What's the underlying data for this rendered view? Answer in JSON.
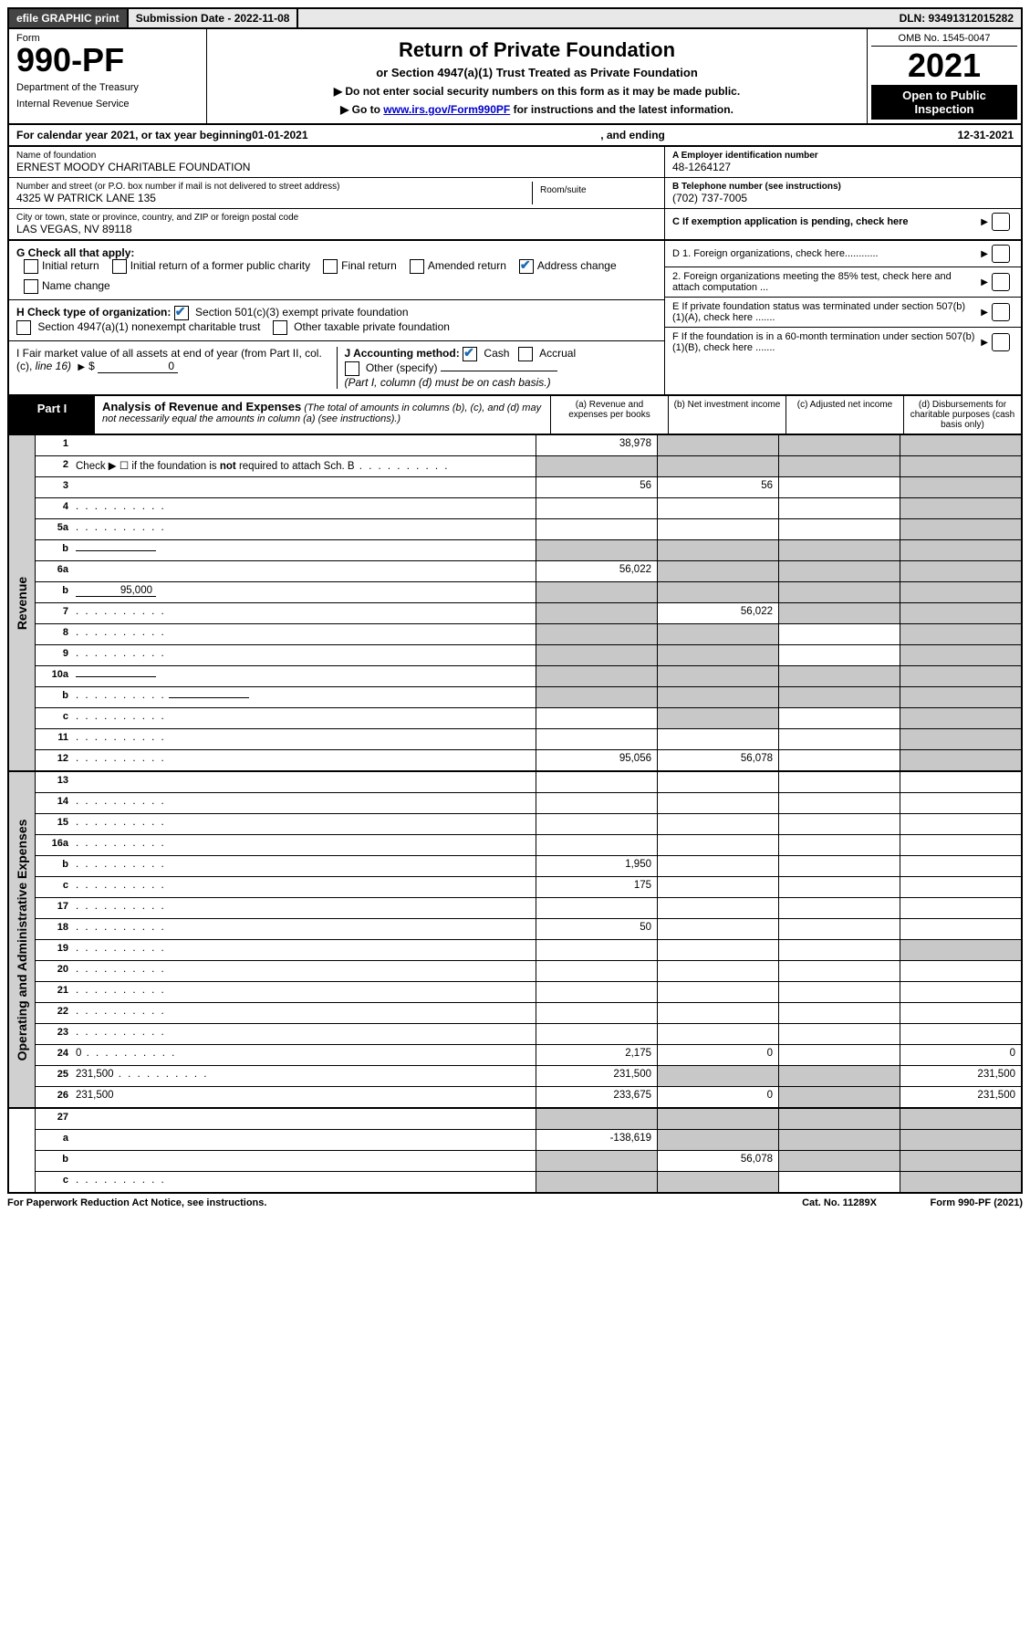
{
  "colors": {
    "link": "#0000cc",
    "check_color": "#1a6bb5",
    "shade": "#c8c8c8",
    "side_bg": "#d0d0d0",
    "black": "#000000",
    "dark_gray": "#444444",
    "bg_gray": "#e8e8e8"
  },
  "typography": {
    "base_font": "Arial",
    "base_size_pt": 9,
    "title_size_pt": 17,
    "form_number_size_pt": 28,
    "year_size_pt": 28
  },
  "top_bar": {
    "efile": "efile GRAPHIC print",
    "sub_label": "Submission Date - 2022-11-08",
    "dln": "DLN: 93491312015282"
  },
  "header": {
    "form_label": "Form",
    "form_number": "990-PF",
    "dept1": "Department of the Treasury",
    "dept2": "Internal Revenue Service",
    "title": "Return of Private Foundation",
    "subtitle": "or Section 4947(a)(1) Trust Treated as Private Foundation",
    "instr1": "▶ Do not enter social security numbers on this form as it may be made public.",
    "instr2_pre": "▶ Go to ",
    "instr2_link": "www.irs.gov/Form990PF",
    "instr2_post": " for instructions and the latest information.",
    "omb": "OMB No. 1545-0047",
    "year": "2021",
    "open": "Open to Public Inspection"
  },
  "calendar": {
    "pre": "For calendar year 2021, or tax year beginning ",
    "begin": "01-01-2021",
    "mid": " , and ending ",
    "end": "12-31-2021"
  },
  "foundation": {
    "name_label": "Name of foundation",
    "name": "ERNEST MOODY CHARITABLE FOUNDATION",
    "addr_label": "Number and street (or P.O. box number if mail is not delivered to street address)",
    "addr": "4325 W PATRICK LANE 135",
    "room_label": "Room/suite",
    "city_label": "City or town, state or province, country, and ZIP or foreign postal code",
    "city": "LAS VEGAS, NV  89118",
    "ein_label": "A Employer identification number",
    "ein": "48-1264127",
    "phone_label": "B Telephone number (see instructions)",
    "phone": "(702) 737-7005",
    "c_label": "C If exemption application is pending, check here",
    "d1": "D 1. Foreign organizations, check here............",
    "d2": "2. Foreign organizations meeting the 85% test, check here and attach computation ...",
    "e_label": "E If private foundation status was terminated under section 507(b)(1)(A), check here .......",
    "f_label": "F If the foundation is in a 60-month termination under section 507(b)(1)(B), check here ......."
  },
  "g_check": {
    "label": "G Check all that apply:",
    "opts": [
      "Initial return",
      "Initial return of a former public charity",
      "Final return",
      "Amended return",
      "Address change",
      "Name change"
    ],
    "checked": [
      false,
      false,
      false,
      false,
      true,
      false
    ]
  },
  "h_check": {
    "label": "H Check type of organization:",
    "opt1": "Section 501(c)(3) exempt private foundation",
    "opt2": "Section 4947(a)(1) nonexempt charitable trust",
    "opt3": "Other taxable private foundation",
    "checked": [
      true,
      false,
      false
    ]
  },
  "i_block": {
    "label_pre": "I Fair market value of all assets at end of year (from Part II, col. (c), ",
    "label_line16": "line 16)",
    "value": "0"
  },
  "j_block": {
    "label": "J Accounting method:",
    "cash": "Cash",
    "accrual": "Accrual",
    "other": "Other (specify)",
    "note": "(Part I, column (d) must be on cash basis.)",
    "cash_checked": true,
    "accrual_checked": false
  },
  "part1": {
    "label": "Part I",
    "title": "Analysis of Revenue and Expenses",
    "title_note": "(The total of amounts in columns (b), (c), and (d) may not necessarily equal the amounts in column (a) (see instructions).)",
    "col_a": "(a) Revenue and expenses per books",
    "col_b": "(b) Net investment income",
    "col_c": "(c) Adjusted net income",
    "col_d": "(d) Disbursements for charitable purposes (cash basis only)"
  },
  "sections": {
    "revenue": "Revenue",
    "opex": "Operating and Administrative Expenses"
  },
  "rows": [
    {
      "n": "1",
      "d": "",
      "a": "38,978",
      "b": "",
      "c": "",
      "shade_b": true,
      "shade_c": true,
      "shade_d": true
    },
    {
      "n": "2",
      "d_html": "Check ▶ ☐ if the foundation is <b>not</b> required to attach Sch. B",
      "a": "",
      "b": "",
      "c": "",
      "d": "",
      "shade_a": true,
      "shade_b": true,
      "shade_c": true,
      "shade_d": true,
      "dots": true
    },
    {
      "n": "3",
      "d": "",
      "a": "56",
      "b": "56",
      "c": "",
      "shade_d": true
    },
    {
      "n": "4",
      "d": "",
      "a": "",
      "b": "",
      "c": "",
      "dots": true,
      "shade_d": true
    },
    {
      "n": "5a",
      "d": "",
      "a": "",
      "b": "",
      "c": "",
      "dots": true,
      "shade_d": true
    },
    {
      "n": "b",
      "d": "",
      "a": "",
      "b": "",
      "c": "",
      "has_inline": true,
      "shade_a": true,
      "shade_b": true,
      "shade_c": true,
      "shade_d": true
    },
    {
      "n": "6a",
      "d": "",
      "a": "56,022",
      "b": "",
      "c": "",
      "shade_b": true,
      "shade_c": true,
      "shade_d": true
    },
    {
      "n": "b",
      "d": "",
      "a": "",
      "b": "",
      "c": "",
      "inline_val": "95,000",
      "has_inline": true,
      "shade_a": true,
      "shade_b": true,
      "shade_c": true,
      "shade_d": true
    },
    {
      "n": "7",
      "d": "",
      "a": "",
      "b": "56,022",
      "c": "",
      "dots": true,
      "shade_a": true,
      "shade_c": true,
      "shade_d": true
    },
    {
      "n": "8",
      "d": "",
      "a": "",
      "b": "",
      "c": "",
      "dots": true,
      "shade_a": true,
      "shade_b": true,
      "shade_d": true
    },
    {
      "n": "9",
      "d": "",
      "a": "",
      "b": "",
      "c": "",
      "dots": true,
      "shade_a": true,
      "shade_b": true,
      "shade_d": true
    },
    {
      "n": "10a",
      "d": "",
      "a": "",
      "b": "",
      "c": "",
      "has_inline": true,
      "shade_a": true,
      "shade_b": true,
      "shade_c": true,
      "shade_d": true
    },
    {
      "n": "b",
      "d": "",
      "a": "",
      "b": "",
      "c": "",
      "dots": true,
      "has_inline": true,
      "shade_a": true,
      "shade_b": true,
      "shade_c": true,
      "shade_d": true
    },
    {
      "n": "c",
      "d": "",
      "a": "",
      "b": "",
      "c": "",
      "dots": true,
      "shade_b": true,
      "shade_d": true
    },
    {
      "n": "11",
      "d": "",
      "a": "",
      "b": "",
      "c": "",
      "dots": true,
      "shade_d": true
    },
    {
      "n": "12",
      "d": "",
      "a": "95,056",
      "b": "56,078",
      "c": "",
      "dots": true,
      "shade_d": true
    }
  ],
  "opex_rows": [
    {
      "n": "13",
      "d": "",
      "a": "",
      "b": "",
      "c": ""
    },
    {
      "n": "14",
      "d": "",
      "a": "",
      "b": "",
      "c": "",
      "dots": true
    },
    {
      "n": "15",
      "d": "",
      "a": "",
      "b": "",
      "c": "",
      "dots": true
    },
    {
      "n": "16a",
      "d": "",
      "a": "",
      "b": "",
      "c": "",
      "dots": true
    },
    {
      "n": "b",
      "d": "",
      "a": "1,950",
      "b": "",
      "c": "",
      "dots": true
    },
    {
      "n": "c",
      "d": "",
      "a": "175",
      "b": "",
      "c": "",
      "dots": true
    },
    {
      "n": "17",
      "d": "",
      "a": "",
      "b": "",
      "c": "",
      "dots": true
    },
    {
      "n": "18",
      "d": "",
      "a": "50",
      "b": "",
      "c": "",
      "dots": true
    },
    {
      "n": "19",
      "d": "",
      "a": "",
      "b": "",
      "c": "",
      "dots": true,
      "shade_d": true
    },
    {
      "n": "20",
      "d": "",
      "a": "",
      "b": "",
      "c": "",
      "dots": true
    },
    {
      "n": "21",
      "d": "",
      "a": "",
      "b": "",
      "c": "",
      "dots": true
    },
    {
      "n": "22",
      "d": "",
      "a": "",
      "b": "",
      "c": "",
      "dots": true
    },
    {
      "n": "23",
      "d": "",
      "a": "",
      "b": "",
      "c": "",
      "dots": true
    },
    {
      "n": "24",
      "d": "0",
      "a": "2,175",
      "b": "0",
      "c": "",
      "dots": true
    },
    {
      "n": "25",
      "d": "231,500",
      "a": "231,500",
      "b": "",
      "c": "",
      "dots": true,
      "shade_b": true,
      "shade_c": true
    },
    {
      "n": "26",
      "d": "231,500",
      "a": "233,675",
      "b": "0",
      "c": "",
      "shade_c": true
    }
  ],
  "bottom_rows": [
    {
      "n": "27",
      "d": "",
      "a": "",
      "b": "",
      "c": "",
      "shade_a": true,
      "shade_b": true,
      "shade_c": true,
      "shade_d": true
    },
    {
      "n": "a",
      "d": "",
      "a": "-138,619",
      "b": "",
      "c": "",
      "shade_b": true,
      "shade_c": true,
      "shade_d": true
    },
    {
      "n": "b",
      "d": "",
      "a": "",
      "b": "56,078",
      "c": "",
      "shade_a": true,
      "shade_c": true,
      "shade_d": true
    },
    {
      "n": "c",
      "d": "",
      "a": "",
      "b": "",
      "c": "",
      "dots": true,
      "shade_a": true,
      "shade_b": true,
      "shade_d": true
    }
  ],
  "footer": {
    "left": "For Paperwork Reduction Act Notice, see instructions.",
    "center": "Cat. No. 11289X",
    "right": "Form 990-PF (2021)"
  }
}
